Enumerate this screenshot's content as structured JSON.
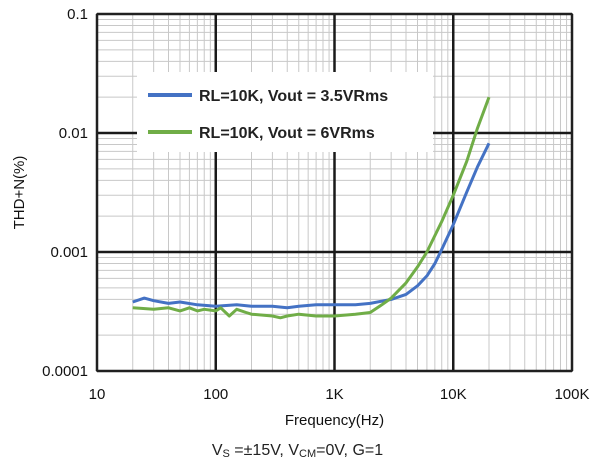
{
  "chart_data": {
    "type": "line",
    "x_scale": "log",
    "y_scale": "log",
    "xlim": [
      10,
      100000
    ],
    "ylim": [
      0.0001,
      0.1
    ],
    "xlabel": "Frequency(Hz)",
    "ylabel": "THD+N(%)",
    "x_tick_labels": [
      "10",
      "100",
      "1K",
      "10K",
      "100K"
    ],
    "y_tick_labels": [
      "0.1",
      "0.01",
      "0.001",
      "0.0001"
    ],
    "grid": true,
    "legend_position": "top-center",
    "series": [
      {
        "name": "RL=10K, Vout = 3.5VRms",
        "color": "#4472C4",
        "points": [
          [
            20,
            0.00038
          ],
          [
            25,
            0.00041
          ],
          [
            30,
            0.00039
          ],
          [
            40,
            0.00037
          ],
          [
            50,
            0.00038
          ],
          [
            70,
            0.00036
          ],
          [
            100,
            0.00035
          ],
          [
            150,
            0.00036
          ],
          [
            200,
            0.00035
          ],
          [
            300,
            0.00035
          ],
          [
            400,
            0.00034
          ],
          [
            500,
            0.00035
          ],
          [
            700,
            0.00036
          ],
          [
            1000,
            0.00036
          ],
          [
            1500,
            0.00036
          ],
          [
            2000,
            0.00037
          ],
          [
            3000,
            0.0004
          ],
          [
            4000,
            0.00044
          ],
          [
            5000,
            0.00052
          ],
          [
            6000,
            0.00063
          ],
          [
            7000,
            0.0008
          ],
          [
            8000,
            0.00105
          ],
          [
            10000,
            0.0017
          ],
          [
            13000,
            0.0032
          ],
          [
            16000,
            0.0052
          ],
          [
            20000,
            0.0082
          ]
        ]
      },
      {
        "name": "RL=10K, Vout = 6VRms",
        "color": "#70AD47",
        "points": [
          [
            20,
            0.00034
          ],
          [
            30,
            0.00033
          ],
          [
            40,
            0.00034
          ],
          [
            50,
            0.00032
          ],
          [
            60,
            0.00034
          ],
          [
            70,
            0.00032
          ],
          [
            80,
            0.00033
          ],
          [
            100,
            0.00032
          ],
          [
            110,
            0.00034
          ],
          [
            130,
            0.00029
          ],
          [
            150,
            0.00033
          ],
          [
            180,
            0.00031
          ],
          [
            200,
            0.0003
          ],
          [
            300,
            0.00029
          ],
          [
            350,
            0.00028
          ],
          [
            400,
            0.00029
          ],
          [
            500,
            0.0003
          ],
          [
            700,
            0.00029
          ],
          [
            1000,
            0.00029
          ],
          [
            1500,
            0.0003
          ],
          [
            2000,
            0.00031
          ],
          [
            2500,
            0.00036
          ],
          [
            3000,
            0.00041
          ],
          [
            4000,
            0.00055
          ],
          [
            5000,
            0.00075
          ],
          [
            6000,
            0.001
          ],
          [
            8000,
            0.0018
          ],
          [
            10000,
            0.003
          ],
          [
            13000,
            0.0058
          ],
          [
            16000,
            0.011
          ],
          [
            20000,
            0.02
          ]
        ]
      }
    ]
  },
  "caption": {
    "vs_label": "V",
    "vs_sub": "S",
    "vs_value": " =±15V, V",
    "vcm_sub": "CM",
    "vcm_value": "=0V, G=1"
  }
}
